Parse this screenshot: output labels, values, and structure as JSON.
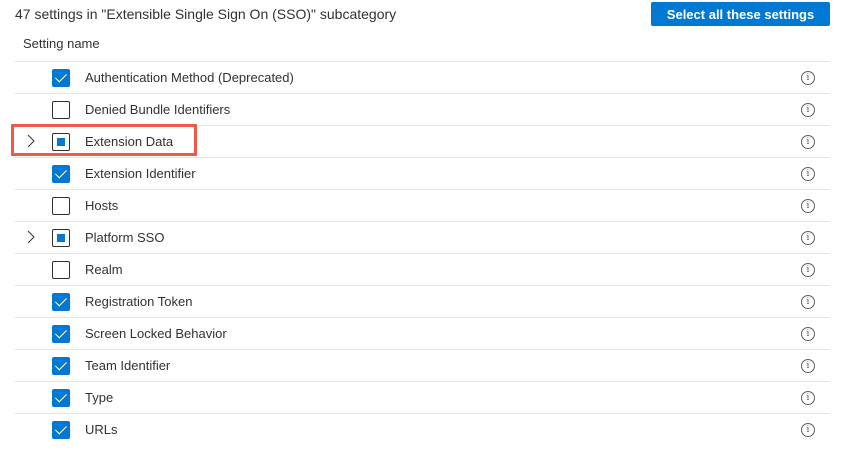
{
  "title": "47 settings in \"Extensible Single Sign On (SSO)\" subcategory",
  "select_all_label": "Select all these settings",
  "column_header": "Setting name",
  "colors": {
    "accent": "#0078d4",
    "highlight": "#f0584a"
  },
  "settings": [
    {
      "label": "Authentication Method (Deprecated)",
      "state": "checked",
      "expandable": false
    },
    {
      "label": "Denied Bundle Identifiers",
      "state": "unchecked",
      "expandable": false
    },
    {
      "label": "Extension Data",
      "state": "partial",
      "expandable": true,
      "highlighted": true
    },
    {
      "label": "Extension Identifier",
      "state": "checked",
      "expandable": false
    },
    {
      "label": "Hosts",
      "state": "unchecked",
      "expandable": false
    },
    {
      "label": "Platform SSO",
      "state": "partial",
      "expandable": true
    },
    {
      "label": "Realm",
      "state": "unchecked",
      "expandable": false
    },
    {
      "label": "Registration Token",
      "state": "checked",
      "expandable": false
    },
    {
      "label": "Screen Locked Behavior",
      "state": "checked",
      "expandable": false
    },
    {
      "label": "Team Identifier",
      "state": "checked",
      "expandable": false
    },
    {
      "label": "Type",
      "state": "checked",
      "expandable": false
    },
    {
      "label": "URLs",
      "state": "checked",
      "expandable": false
    }
  ]
}
